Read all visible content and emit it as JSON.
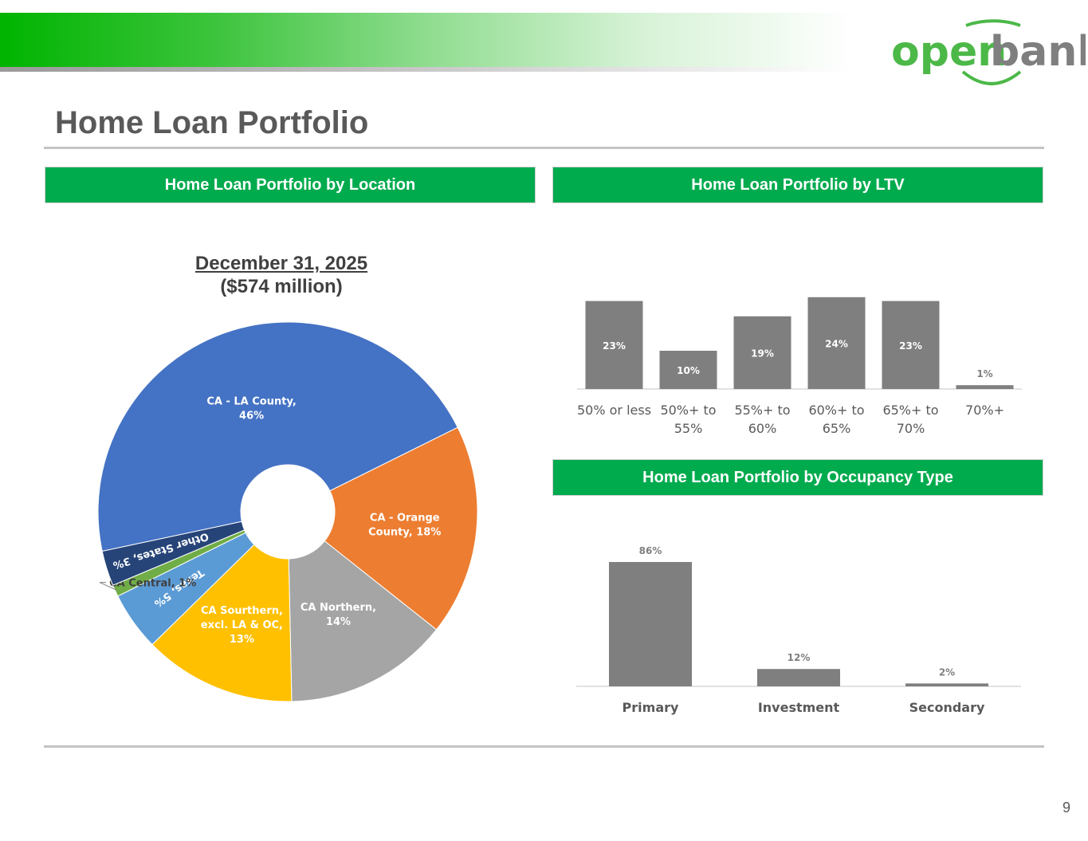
{
  "page": {
    "title": "Home Loan Portfolio",
    "page_number": "9"
  },
  "logo": {
    "text_open": "open",
    "text_bank": "bank",
    "colors": {
      "green": "#4cb848",
      "gray": "#7f7f7f"
    }
  },
  "sections": {
    "location": "Home Loan Portfolio by Location",
    "ltv": "Home Loan Portfolio by LTV",
    "occupancy": "Home Loan Portfolio by Occupancy Type"
  },
  "pie": {
    "date": "December 31, 2025",
    "amount": "($574 million)"
  },
  "chart_data": [
    {
      "type": "pie",
      "title": "December 31, 2025",
      "subtitle": "($574 million)",
      "categories": [
        "CA - LA County",
        "CA - Orange County",
        "CA Northern",
        "CA Sourthern, excl. LA & OC",
        "Texas",
        "CA Central",
        "Other States"
      ],
      "values": [
        46,
        18,
        14,
        13,
        5,
        1,
        3
      ],
      "labels": [
        "CA - LA County, 46%",
        "CA - Orange County, 18%",
        "CA Northern, 14%",
        "CA Sourthern, excl. LA & OC, 13%",
        "Texas, 5%",
        "CA Central, 1%",
        "Other States, 3%"
      ],
      "label_lines": [
        [
          "CA - LA County,",
          "46%"
        ],
        [
          "CA - Orange",
          "County, 18%"
        ],
        [
          "CA Northern,",
          "14%"
        ],
        [
          "CA Sourthern,",
          "excl. LA & OC,",
          "13%"
        ],
        [
          "Texas, 5%"
        ],
        [
          "CA Central, 1%"
        ],
        [
          "Other States, 3%"
        ]
      ],
      "colors": [
        "#4472c4",
        "#ed7d31",
        "#a5a5a5",
        "#ffc000",
        "#5b9bd5",
        "#70ad47",
        "#264478"
      ],
      "donut": true
    },
    {
      "type": "bar",
      "categories": [
        "50% or less",
        "50%+ to 55%",
        "55%+ to 60%",
        "60%+ to 65%",
        "65%+ to 70%",
        "70%+"
      ],
      "category_lines": [
        [
          "50% or less"
        ],
        [
          "50%+ to",
          "55%"
        ],
        [
          "55%+ to",
          "60%"
        ],
        [
          "60%+ to",
          "65%"
        ],
        [
          "65%+ to",
          "70%"
        ],
        [
          "70%+"
        ]
      ],
      "values": [
        23,
        10,
        19,
        24,
        23,
        1
      ],
      "data_labels": [
        "23%",
        "10%",
        "19%",
        "24%",
        "23%",
        "1%"
      ],
      "color": "#7f7f7f",
      "ylim": [
        0,
        25
      ],
      "grid": false
    },
    {
      "type": "bar",
      "categories": [
        "Primary",
        "Investment",
        "Secondary"
      ],
      "values": [
        86,
        12,
        2
      ],
      "data_labels": [
        "86%",
        "12%",
        "2%"
      ],
      "color": "#7f7f7f",
      "ylim": [
        0,
        86
      ],
      "grid": false
    }
  ]
}
